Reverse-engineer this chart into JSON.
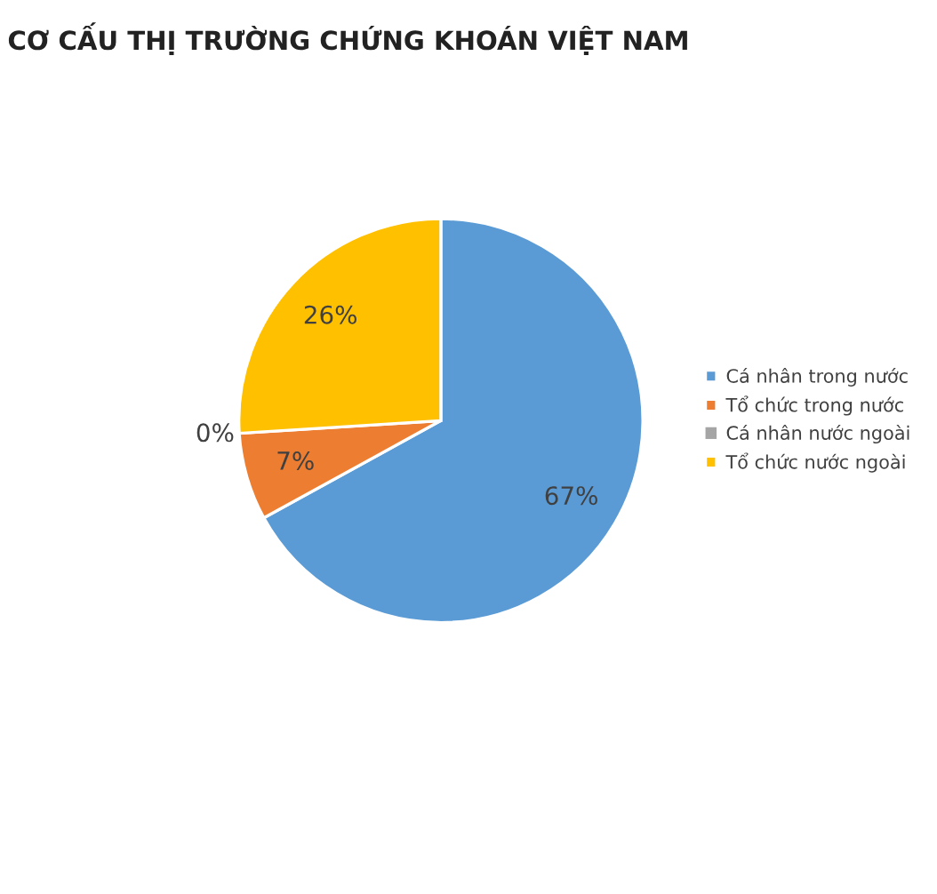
{
  "chart_data": {
    "type": "pie",
    "title": "CƠ CẤU THỊ TRƯỜNG CHỨNG KHOÁN VIỆT NAM",
    "categories": [
      "Cá nhân trong nước",
      "Tổ chức trong nước",
      "Cá nhân nước ngoài",
      "Tổ chức nước ngoài"
    ],
    "values": [
      67,
      7,
      0,
      26
    ],
    "colors": [
      "#5b9bd5",
      "#ed7d31",
      "#a5a5a5",
      "#ffc000"
    ],
    "value_labels": [
      "67%",
      "7%",
      "0%",
      "26%"
    ],
    "legend": "right"
  }
}
